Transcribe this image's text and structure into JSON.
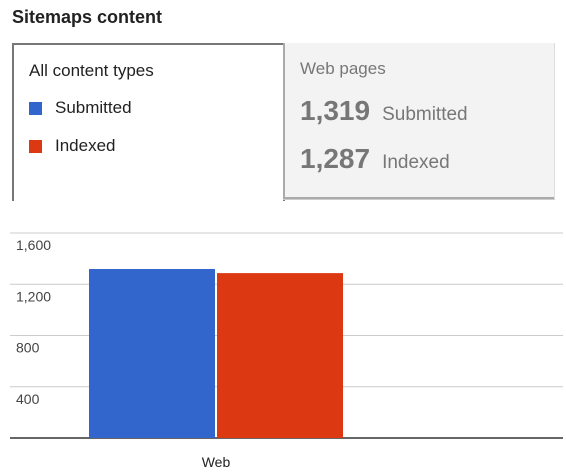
{
  "header": {
    "title": "Sitemaps content"
  },
  "tabs": {
    "all": {
      "title": "All content types",
      "legend": [
        {
          "label": "Submitted",
          "color": "#3366cc"
        },
        {
          "label": "Indexed",
          "color": "#dc3912"
        }
      ]
    },
    "web": {
      "title": "Web pages",
      "stats": [
        {
          "value": "1,319",
          "label": "Submitted"
        },
        {
          "value": "1,287",
          "label": "Indexed"
        }
      ]
    }
  },
  "chart_data": {
    "type": "bar",
    "categories": [
      "Web"
    ],
    "series": [
      {
        "name": "Submitted",
        "values": [
          1319
        ],
        "color": "#3366cc"
      },
      {
        "name": "Indexed",
        "values": [
          1287
        ],
        "color": "#dc3912"
      }
    ],
    "yticks": [
      "1,600",
      "1,200",
      "800",
      "400"
    ],
    "ytick_values": [
      1600,
      1200,
      800,
      400
    ],
    "ylim": [
      0,
      1600
    ],
    "grid": true
  }
}
